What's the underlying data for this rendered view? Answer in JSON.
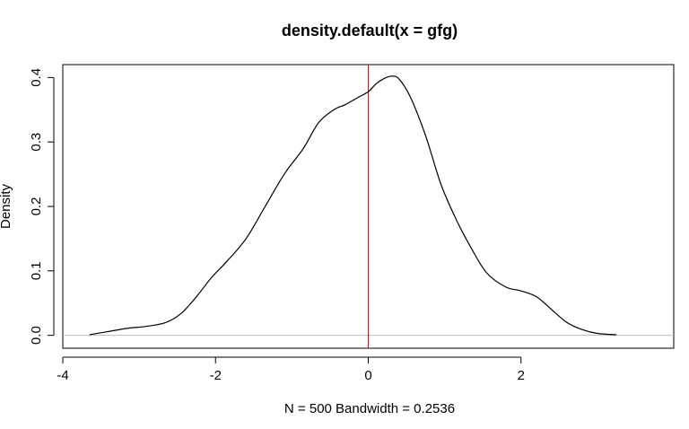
{
  "chart_data": {
    "type": "line",
    "title": "density.default(x = gfg)",
    "xlabel": "N = 500   Bandwidth = 0.2536",
    "ylabel": "Density",
    "xlim": [
      -4.0,
      4.0
    ],
    "ylim": [
      -0.02,
      0.42
    ],
    "x_ticks": [
      -4,
      -2,
      0,
      2
    ],
    "x_tick_labels": [
      "-4",
      "-2",
      "0",
      "2"
    ],
    "y_ticks": [
      0.0,
      0.1,
      0.2,
      0.3,
      0.4
    ],
    "y_tick_labels": [
      "0.0",
      "0.1",
      "0.2",
      "0.3",
      "0.4"
    ],
    "grid": false,
    "series": [
      {
        "color": "#000000",
        "x": [
          -3.65,
          -3.4,
          -3.15,
          -2.9,
          -2.65,
          -2.45,
          -2.25,
          -2.05,
          -1.85,
          -1.6,
          -1.35,
          -1.1,
          -0.85,
          -0.65,
          -0.45,
          -0.3,
          -0.15,
          0.0,
          0.1,
          0.2,
          0.3,
          0.4,
          0.55,
          0.75,
          0.95,
          1.15,
          1.35,
          1.55,
          1.8,
          2.0,
          2.2,
          2.4,
          2.6,
          2.8,
          3.0,
          3.25
        ],
        "y": [
          0.001,
          0.006,
          0.011,
          0.014,
          0.02,
          0.034,
          0.06,
          0.09,
          0.115,
          0.15,
          0.2,
          0.25,
          0.29,
          0.33,
          0.35,
          0.358,
          0.368,
          0.378,
          0.39,
          0.398,
          0.402,
          0.398,
          0.37,
          0.31,
          0.235,
          0.18,
          0.135,
          0.097,
          0.075,
          0.069,
          0.06,
          0.04,
          0.02,
          0.009,
          0.003,
          0.001
        ]
      }
    ],
    "reference_lines": [
      {
        "orientation": "vertical",
        "x": 0,
        "color": "#ff0000"
      },
      {
        "orientation": "horizontal",
        "y": 0,
        "color": "#bebebe"
      }
    ]
  }
}
